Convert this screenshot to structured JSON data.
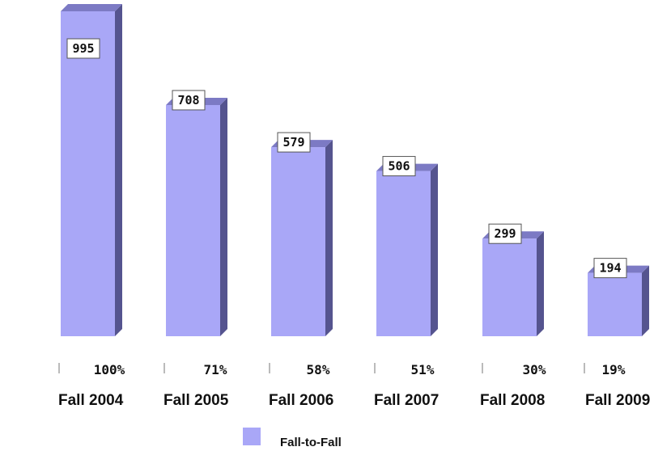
{
  "chart_data": {
    "type": "bar",
    "categories": [
      "Fall 2004",
      "Fall 2005",
      "Fall 2006",
      "Fall 2007",
      "Fall 2008",
      "Fall 2009"
    ],
    "series": [
      {
        "name": "Fall-to-Fall",
        "values": [
          995,
          708,
          579,
          506,
          299,
          194
        ],
        "color": "#a9a7f7"
      }
    ],
    "percent_labels": [
      "100%",
      "71%",
      "58%",
      "51%",
      "30%",
      "19%"
    ],
    "data_labels": [
      "995",
      "708",
      "579",
      "506",
      "299",
      "194"
    ],
    "ylim": [
      0,
      995
    ],
    "legend_position": "bottom",
    "grid": false,
    "colors": {
      "bar_front": "#a9a7f7",
      "bar_side": "#55548f",
      "bar_top": "#7c7ac4"
    }
  }
}
